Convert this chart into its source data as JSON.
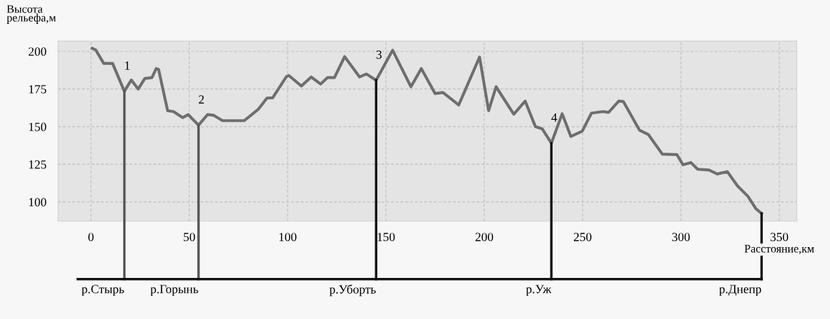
{
  "chart_data": {
    "type": "line",
    "ylabel": "Высота\nрельефа,м",
    "xlabel": "Расстояние,км",
    "series": [
      {
        "color": "#6e6e6e",
        "x": [
          0.7,
          2.4,
          6.5,
          11,
          17,
          20.5,
          24,
          27.4,
          31,
          33.2,
          34.4,
          39,
          42,
          46.6,
          49.5,
          54.7,
          59.3,
          62.3,
          66.9,
          78,
          85,
          89.5,
          92.4,
          99.4,
          100.6,
          107,
          112,
          116.8,
          120.3,
          123.8,
          129,
          136.6,
          140,
          145,
          153.4,
          162.7,
          168,
          175,
          179,
          187,
          197.6,
          202.2,
          206,
          215,
          220.8,
          226,
          229.5,
          234.1,
          239.6,
          244,
          249.8,
          254.5,
          260.3,
          263.2,
          268.4,
          270.7,
          278.9,
          283.5,
          290.5,
          298,
          301,
          305,
          308.5,
          314.3,
          318.4,
          323.6,
          328.8,
          334,
          338.1,
          341
        ],
        "values": [
          202,
          201,
          192,
          192,
          173.5,
          181,
          175,
          182,
          182.6,
          188.6,
          188,
          160.6,
          160,
          156,
          158,
          151,
          158,
          157.6,
          154,
          154,
          161.4,
          169,
          169.2,
          183.3,
          184,
          177,
          183,
          178.3,
          182.6,
          182.6,
          196.5,
          183,
          185,
          180.8,
          200.8,
          176.5,
          188.6,
          172,
          172.7,
          164.4,
          196.2,
          160.6,
          176.5,
          158.3,
          167,
          150,
          148.5,
          139,
          158.6,
          143.5,
          147,
          159,
          160,
          159.5,
          167,
          166.7,
          147.7,
          144.7,
          131.8,
          131.4,
          124.7,
          126.2,
          121.7,
          121.2,
          118.6,
          120.1,
          110.6,
          103.8,
          95.5,
          92.4
        ]
      }
    ],
    "annotations": [
      {
        "text": "1",
        "x": 17,
        "y": 173.5
      },
      {
        "text": "2",
        "x": 54.7,
        "y": 151
      },
      {
        "text": "3",
        "x": 145,
        "y": 180.8
      },
      {
        "text": "4",
        "x": 234.1,
        "y": 139
      }
    ],
    "ref_lines": [
      {
        "axis": "x",
        "value": 17,
        "label": "р.Стырь",
        "color": "#555555"
      },
      {
        "axis": "x",
        "value": 54.7,
        "label": "р.Горынь",
        "color": "#555555"
      },
      {
        "axis": "x",
        "value": 145,
        "label": "р.Уборть",
        "color": "#111111"
      },
      {
        "axis": "x",
        "value": 234.1,
        "label": "р.Уж",
        "color": "#111111"
      },
      {
        "axis": "x",
        "value": 341,
        "label": "р.Днепр",
        "color": "#111111"
      }
    ],
    "xlim": [
      -16.7,
      358.9
    ],
    "ylim": [
      87.3,
      206.8
    ],
    "xticks": [
      0,
      50,
      100,
      150,
      200,
      250,
      300,
      350
    ],
    "yticks": [
      100,
      125,
      150,
      175,
      200
    ],
    "grid": true,
    "legend": false,
    "line_style": "solid",
    "marker": "none"
  }
}
